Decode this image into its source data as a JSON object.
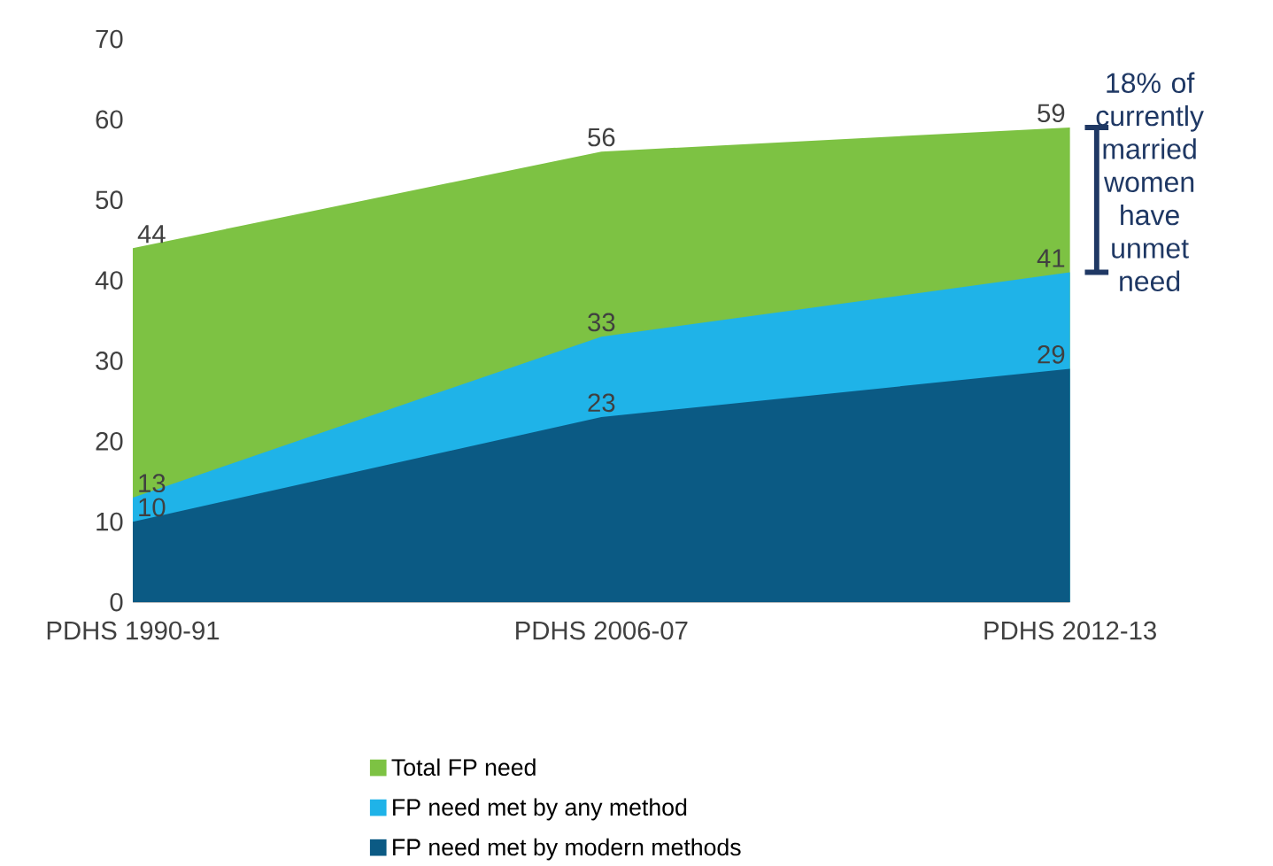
{
  "chart_data": {
    "type": "area",
    "categories": [
      "PDHS 1990-91",
      "PDHS 2006-07",
      "PDHS 2012-13"
    ],
    "series": [
      {
        "name": "Total FP need",
        "color": "#7dc243",
        "values": [
          44,
          56,
          59
        ]
      },
      {
        "name": "FP need met by any method",
        "color": "#1fb3e8",
        "values": [
          13,
          33,
          41
        ]
      },
      {
        "name": "FP need met by modern methods",
        "color": "#0b5a84",
        "values": [
          10,
          23,
          29
        ]
      }
    ],
    "ylim": [
      0,
      70
    ],
    "yticks": [
      0,
      10,
      20,
      30,
      40,
      50,
      60,
      70
    ],
    "data_labels": true,
    "legend": "bottom",
    "grid": false,
    "annotations": [
      "18% of currently married women have unmet need"
    ]
  }
}
